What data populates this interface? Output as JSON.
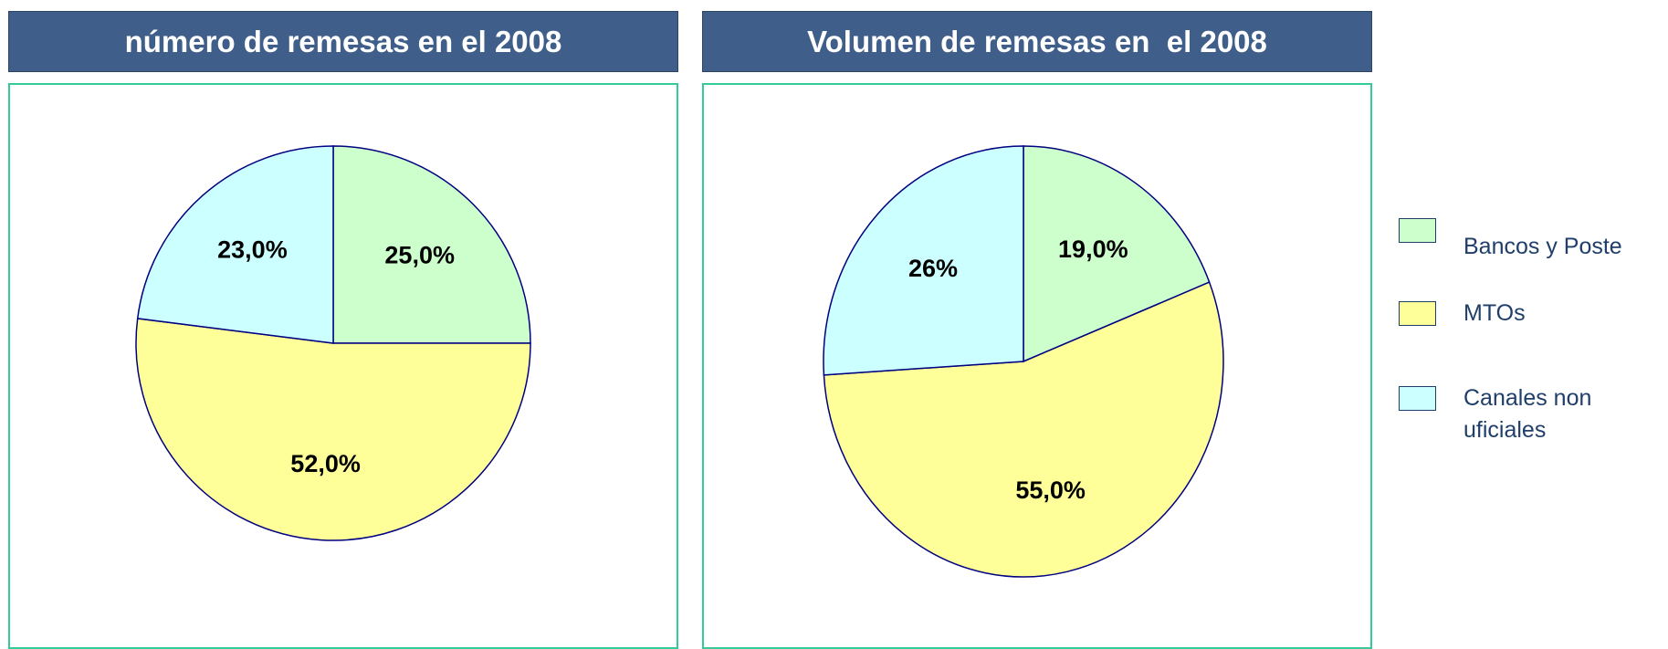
{
  "chart_data": [
    {
      "type": "pie",
      "title": "número de remesas en el 2008",
      "categories": [
        "Bancos y Poste",
        "MTOs",
        "Canales non uficiales"
      ],
      "values": [
        25,
        52,
        23
      ],
      "value_labels": [
        "25,0%",
        "52,0%",
        "23,0%"
      ],
      "colors": [
        "#ccffcc",
        "#ffff99",
        "#ccffff"
      ]
    },
    {
      "type": "pie",
      "title": "Volumen de remesas en  el 2008",
      "categories": [
        "Bancos y Poste",
        "MTOs",
        "Canales non uficiales"
      ],
      "values": [
        19,
        55,
        26
      ],
      "value_labels": [
        "19,0%",
        "55,0%",
        "26%"
      ],
      "colors": [
        "#ccffcc",
        "#ffff99",
        "#ccffff"
      ]
    }
  ]
}
